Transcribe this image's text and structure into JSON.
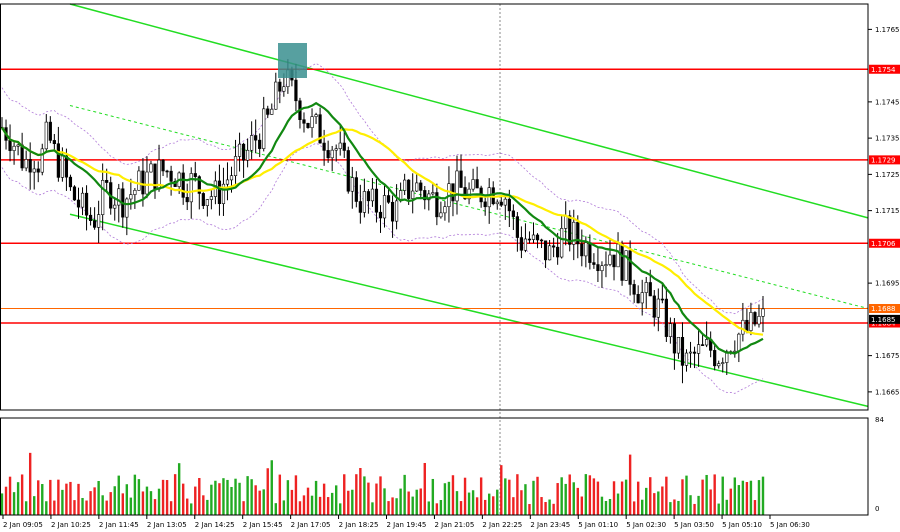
{
  "chart_data": {
    "type": "candlestick",
    "symbol": "EURUSD",
    "price_axis": {
      "ticks": [
        "1.1765",
        "1.1745",
        "1.1735",
        "1.1725",
        "1.1715",
        "1.1695",
        "1.1675",
        "1.1665"
      ],
      "ylim": [
        1.166,
        1.1772
      ]
    },
    "volume_axis": {
      "ticks": [
        "84",
        "0"
      ]
    },
    "time_axis": {
      "ticks": [
        "2 Jan 09:05",
        "2 Jan 10:25",
        "2 Jan 11:45",
        "2 Jan 13:05",
        "2 Jan 14:25",
        "2 Jan 15:45",
        "2 Jan 17:05",
        "2 Jan 18:25",
        "2 Jan 19:45",
        "2 Jan 21:05",
        "2 Jan 22:25",
        "2 Jan 23:45",
        "5 Jan 01:10",
        "5 Jan 02:30",
        "5 Jan 03:50",
        "5 Jan 05:10",
        "5 Jan 06:30"
      ]
    },
    "levels": [
      {
        "value": "1.1754",
        "color": "#ff0000"
      },
      {
        "value": "1.1729",
        "color": "#ff0000"
      },
      {
        "value": "1.1706",
        "color": "#ff0000"
      },
      {
        "value": "1.1688",
        "color": "#ff6600"
      },
      {
        "value": "1.1684",
        "color": "#ff0000"
      }
    ],
    "current_price": "1.1685",
    "close_path": [
      [
        0,
        1.1738
      ],
      [
        1,
        1.1736
      ],
      [
        2,
        1.1732
      ],
      [
        3,
        1.1728
      ],
      [
        4,
        1.1731
      ],
      [
        5,
        1.1728
      ],
      [
        6,
        1.1736
      ],
      [
        7,
        1.173
      ],
      [
        8,
        1.1726
      ],
      [
        9,
        1.172
      ],
      [
        10,
        1.1717
      ],
      [
        11,
        1.1714
      ],
      [
        12,
        1.1712
      ],
      [
        13,
        1.1718
      ],
      [
        14,
        1.1721
      ],
      [
        15,
        1.1719
      ],
      [
        16,
        1.1718
      ],
      [
        17,
        1.172
      ],
      [
        18,
        1.1722
      ],
      [
        19,
        1.1724
      ],
      [
        20,
        1.1725
      ],
      [
        21,
        1.1726
      ],
      [
        22,
        1.1726
      ],
      [
        23,
        1.1725
      ],
      [
        24,
        1.1722
      ],
      [
        25,
        1.1723
      ],
      [
        26,
        1.1721
      ],
      [
        27,
        1.172
      ],
      [
        28,
        1.1719
      ],
      [
        29,
        1.1722
      ],
      [
        30,
        1.1725
      ],
      [
        31,
        1.1728
      ],
      [
        32,
        1.173
      ],
      [
        33,
        1.1734
      ],
      [
        34,
        1.1737
      ],
      [
        35,
        1.174
      ],
      [
        36,
        1.1746
      ],
      [
        37,
        1.1752
      ],
      [
        38,
        1.1748
      ],
      [
        39,
        1.1745
      ],
      [
        40,
        1.174
      ],
      [
        41,
        1.1738
      ],
      [
        42,
        1.1736
      ],
      [
        43,
        1.1734
      ],
      [
        44,
        1.1732
      ],
      [
        45,
        1.1727
      ],
      [
        46,
        1.1722
      ],
      [
        47,
        1.1718
      ],
      [
        48,
        1.1717
      ],
      [
        49,
        1.1716
      ],
      [
        50,
        1.1717
      ],
      [
        51,
        1.1716
      ],
      [
        52,
        1.1715
      ],
      [
        53,
        1.172
      ],
      [
        54,
        1.1722
      ],
      [
        55,
        1.1721
      ],
      [
        56,
        1.1719
      ],
      [
        57,
        1.1718
      ],
      [
        58,
        1.172
      ],
      [
        59,
        1.1721
      ],
      [
        60,
        1.1721
      ],
      [
        61,
        1.172
      ],
      [
        62,
        1.1719
      ],
      [
        63,
        1.172
      ],
      [
        64,
        1.1721
      ],
      [
        65,
        1.1721
      ],
      [
        66,
        1.172
      ],
      [
        67,
        1.1713
      ],
      [
        68,
        1.1706
      ],
      [
        69,
        1.1708
      ],
      [
        70,
        1.1705
      ],
      [
        71,
        1.1704
      ],
      [
        72,
        1.1703
      ],
      [
        73,
        1.1707
      ],
      [
        74,
        1.1709
      ],
      [
        75,
        1.1708
      ],
      [
        76,
        1.1706
      ],
      [
        77,
        1.1705
      ],
      [
        78,
        1.1704
      ],
      [
        79,
        1.1702
      ],
      [
        80,
        1.1704
      ],
      [
        81,
        1.1702
      ],
      [
        82,
        1.1699
      ],
      [
        83,
        1.1696
      ],
      [
        84,
        1.1692
      ],
      [
        85,
        1.169
      ],
      [
        86,
        1.1689
      ],
      [
        87,
        1.1685
      ],
      [
        88,
        1.168
      ],
      [
        89,
        1.1675
      ],
      [
        90,
        1.1673
      ],
      [
        91,
        1.1675
      ],
      [
        92,
        1.1676
      ],
      [
        93,
        1.1677
      ],
      [
        94,
        1.1675
      ],
      [
        95,
        1.1677
      ],
      [
        96,
        1.168
      ],
      [
        97,
        1.1681
      ],
      [
        98,
        1.1682
      ],
      [
        99,
        1.1684
      ],
      [
        100,
        1.1685
      ]
    ]
  }
}
